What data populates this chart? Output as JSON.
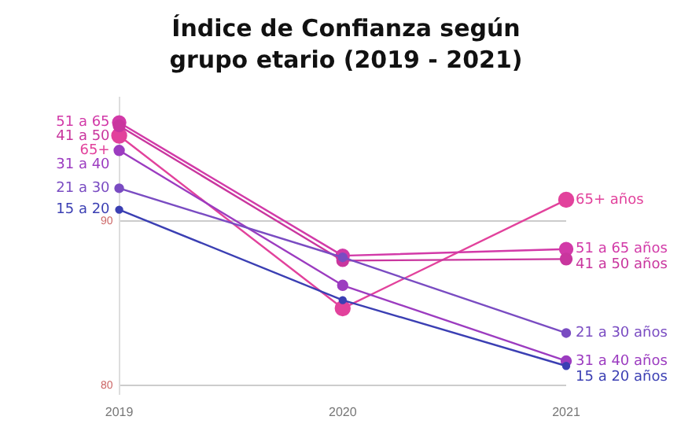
{
  "chart_data": {
    "type": "line",
    "title": "Índice de Confianza según grupo etario (2019 - 2021)",
    "categories": [
      "2019",
      "2020",
      "2021"
    ],
    "series": [
      {
        "name": "15 a 20 años",
        "color": "#3b3fb3",
        "values": [
          90.7,
          85.2,
          81.2
        ]
      },
      {
        "name": "21 a 30 años",
        "color": "#7a4cc2",
        "values": [
          92,
          87.8,
          83.2
        ]
      },
      {
        "name": "31 a 40 años",
        "color": "#9c3cc0",
        "values": [
          94.3,
          86.1,
          81.5
        ]
      },
      {
        "name": "41 a 50 años",
        "color": "#c9369e",
        "values": [
          95.8,
          87.6,
          87.7
        ]
      },
      {
        "name": "51 a 65 años",
        "color": "#d23aa8",
        "values": [
          96,
          87.9,
          88.3
        ]
      },
      {
        "name": "65+ años",
        "color": "#e2429c",
        "values": [
          95.2,
          84.7,
          91.3
        ]
      }
    ],
    "annotations": [
      {
        "text": "15 a 20",
        "x": "2019",
        "y": 90.7
      },
      {
        "text": "21 a 30",
        "x": "2019",
        "y": 92
      },
      {
        "text": "31 a 40",
        "x": "2019",
        "y": 94.3
      },
      {
        "text": "41 a 50",
        "x": "2019",
        "y": 95.8
      },
      {
        "text": "51 a 65",
        "x": "2019",
        "y": 96
      },
      {
        "text": "65+",
        "x": "2019",
        "y": 95.2
      }
    ],
    "ylim": [
      79.5,
      97.5
    ],
    "yticks": [
      80,
      90
    ],
    "grid": "y",
    "legend": false,
    "marker": "circle",
    "line_style": "solid"
  }
}
